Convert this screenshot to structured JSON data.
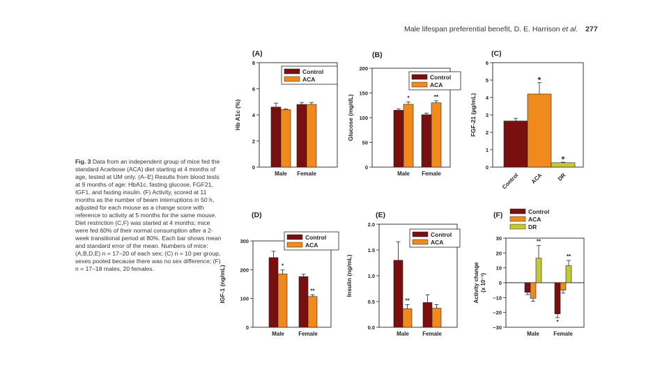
{
  "header": {
    "running_title": "Male lifespan preferential benefit, D. E. Harrison",
    "et_al": "et al.",
    "page_number": "277"
  },
  "caption": {
    "label": "Fig. 3",
    "text": "Data from an independent group of mice fed the standard Acarbose (ACA) diet starting at 4 months of age, tested at UM only. (A–E) Results from blood tests at 9 months of age: HbA1c, fasting glucose, FGF21, IGF1, and fasting insulin. (F) Activity, scored at 11 months as the number of beam interruptions in 50 h, adjusted for each mouse as a change score with reference to activity at 5 months for the same mouse. Diet restriction (C,F) was started at 4 months; mice were fed 60% of their normal consumption after a 2-week transitional period at 80%. Each bar shows mean and standard error of the mean. Numbers of mice: (A,B,D,E) n = 17–20 of each sex; (C) n = 10 per group, sexes pooled because there was no sex difference; (F) n = 17–18 males, 20 females."
  },
  "colors": {
    "control": "#7a0f0f",
    "aca": "#f08a1c",
    "dr": "#c4c832"
  },
  "chart_data": [
    {
      "id": "A",
      "panel_label": "(A)",
      "type": "bar",
      "ylabel": "Hb A1c (%)",
      "ylim": [
        0,
        8
      ],
      "yticks": [
        0,
        2,
        4,
        6,
        8
      ],
      "categories": [
        "Male",
        "Female"
      ],
      "series": [
        {
          "name": "Control",
          "color": "#7a0f0f",
          "values": [
            4.6,
            4.8
          ],
          "errors": [
            0.3,
            0.15
          ]
        },
        {
          "name": "ACA",
          "color": "#f08a1c",
          "values": [
            4.4,
            4.8
          ],
          "errors": [
            0.05,
            0.15
          ]
        }
      ],
      "annotations": [],
      "legend": "top-right"
    },
    {
      "id": "B",
      "panel_label": "(B)",
      "type": "bar",
      "ylabel": "Glucose (mg/dL)",
      "ylim": [
        0,
        200
      ],
      "yticks": [
        0,
        50,
        100,
        150,
        200
      ],
      "categories": [
        "Male",
        "Female"
      ],
      "series": [
        {
          "name": "Control",
          "color": "#7a0f0f",
          "values": [
            115,
            106
          ],
          "errors": [
            3,
            3
          ]
        },
        {
          "name": "ACA",
          "color": "#f08a1c",
          "values": [
            127,
            130
          ],
          "errors": [
            5,
            4
          ]
        }
      ],
      "annotations": [
        {
          "series": 1,
          "category": 0,
          "text": "*"
        },
        {
          "series": 1,
          "category": 1,
          "text": "**"
        }
      ],
      "legend": "top-right"
    },
    {
      "id": "C",
      "panel_label": "(C)",
      "type": "bar",
      "ylabel": "FGF-21 (µg/mL)",
      "ylim": [
        0,
        6
      ],
      "yticks": [
        0,
        1,
        2,
        3,
        4,
        5,
        6
      ],
      "categories": [
        "Control",
        "ACA",
        "DR"
      ],
      "values": [
        2.65,
        4.2,
        0.25
      ],
      "errors": [
        0.15,
        0.65,
        0.03
      ],
      "bar_colors": [
        "#7a0f0f",
        "#f08a1c",
        "#c4c832"
      ],
      "annotations": [
        {
          "category": 1,
          "text": "*"
        },
        {
          "category": 2,
          "text": "*"
        }
      ],
      "legend": "none"
    },
    {
      "id": "D",
      "panel_label": "(D)",
      "type": "bar",
      "ylabel": "IGF-1 (ng/mL)",
      "ylim": [
        0,
        300
      ],
      "yticks": [
        0,
        100,
        200,
        300
      ],
      "categories": [
        "Male",
        "Female"
      ],
      "series": [
        {
          "name": "Control",
          "color": "#7a0f0f",
          "values": [
            242,
            176
          ],
          "errors": [
            22,
            8
          ]
        },
        {
          "name": "ACA",
          "color": "#f08a1c",
          "values": [
            185,
            107
          ],
          "errors": [
            14,
            6
          ]
        }
      ],
      "annotations": [
        {
          "series": 1,
          "category": 0,
          "text": "*"
        },
        {
          "series": 1,
          "category": 1,
          "text": "**"
        }
      ],
      "legend": "top-right"
    },
    {
      "id": "E",
      "panel_label": "(E)",
      "type": "bar",
      "ylabel": "Insulin (ng/mL)",
      "ylim": [
        0,
        2.0
      ],
      "yticks": [
        "0.0",
        "0.5",
        "1.0",
        "1.5",
        "2.0"
      ],
      "categories": [
        "Male",
        "Female"
      ],
      "series": [
        {
          "name": "Control",
          "color": "#7a0f0f",
          "values": [
            1.3,
            0.48
          ],
          "errors": [
            0.36,
            0.15
          ]
        },
        {
          "name": "ACA",
          "color": "#f08a1c",
          "values": [
            0.36,
            0.37
          ],
          "errors": [
            0.08,
            0.07
          ]
        }
      ],
      "annotations": [
        {
          "series": 1,
          "category": 0,
          "text": "**"
        }
      ],
      "legend": "top-right"
    },
    {
      "id": "F",
      "panel_label": "(F)",
      "type": "bar",
      "ylabel": "Activity change",
      "ylabel2": "(x 10⁻³)",
      "ylim": [
        -30,
        30
      ],
      "yticks": [
        -30,
        -20,
        -10,
        0,
        10,
        20,
        30
      ],
      "ytick_labels": [
        "−30",
        "−20",
        "−10",
        "0",
        "10",
        "20",
        "30"
      ],
      "categories": [
        "Male",
        "Female"
      ],
      "series": [
        {
          "name": "Control",
          "color": "#7a0f0f",
          "values": [
            -6.5,
            -21
          ],
          "errors": [
            1.5,
            2.5
          ]
        },
        {
          "name": "ACA",
          "color": "#f08a1c",
          "values": [
            -10.5,
            -5
          ],
          "errors": [
            2,
            2
          ]
        },
        {
          "name": "DR",
          "color": "#c4c832",
          "values": [
            16.5,
            11.5
          ],
          "errors": [
            8.5,
            3.5
          ]
        }
      ],
      "annotations": [
        {
          "series": 2,
          "category": 0,
          "text": "**"
        },
        {
          "series": 2,
          "category": 1,
          "text": "**"
        },
        {
          "series": 0,
          "category": 1,
          "text": "*",
          "below": true
        }
      ],
      "legend": "above"
    }
  ]
}
